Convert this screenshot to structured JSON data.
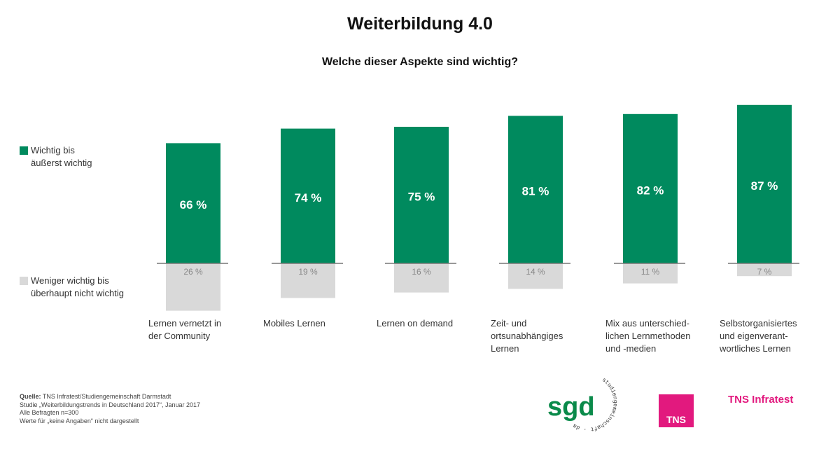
{
  "chart_data": {
    "type": "bar",
    "title": "Weiterbildung 4.0",
    "subtitle": "Welche dieser Aspekte sind wichtig?",
    "categories": [
      "Lernen vernetzt in\nder Community",
      "Mobiles Lernen",
      "Lernen on demand",
      "Zeit- und\nortsunabhängiges\nLernen",
      "Mix aus unterschied-\nlichen Lernmethoden\nund -medien",
      "Selbstorganisiertes\nund eigenverant-\nwortliches Lernen"
    ],
    "series": [
      {
        "name": "Wichtig bis äußerst wichtig",
        "values": [
          66,
          74,
          75,
          81,
          82,
          87
        ],
        "labels": [
          "66 %",
          "74 %",
          "75 %",
          "81 %",
          "82 %",
          "87 %"
        ],
        "color": "#008a5e",
        "direction": "up"
      },
      {
        "name": "Weniger wichtig bis überhaupt nicht wichtig",
        "values": [
          26,
          19,
          16,
          14,
          11,
          7
        ],
        "labels": [
          "26 %",
          "19 %",
          "16 %",
          "14 %",
          "11 %",
          "7 %"
        ],
        "color": "#d9d9d9",
        "direction": "down"
      }
    ],
    "unit": "%",
    "legend_position": "left",
    "grid": false
  },
  "legend": {
    "positive": "Wichtig bis\näußerst wichtig",
    "negative": "Weniger wichtig bis\nüberhaupt nicht wichtig"
  },
  "source": {
    "label": "Quelle:",
    "line1": " TNS Infratest/Studiengemeinschaft Darmstadt",
    "line2": "Studie „Weiterbildungstrends in Deutschland 2017“, Januar 2017",
    "line3": "Alle Befragten n=300",
    "line4": "Werte für „keine Angaben“ nicht dargestellt"
  },
  "logos": {
    "sgd": "sgd",
    "sgd_ring": "studiengemeinschaft · darmstadt",
    "tns_box": "TNS",
    "tns_text": "TNS Infratest"
  },
  "colors": {
    "green": "#008a5e",
    "gray": "#d9d9d9",
    "pink": "#e2197e"
  }
}
